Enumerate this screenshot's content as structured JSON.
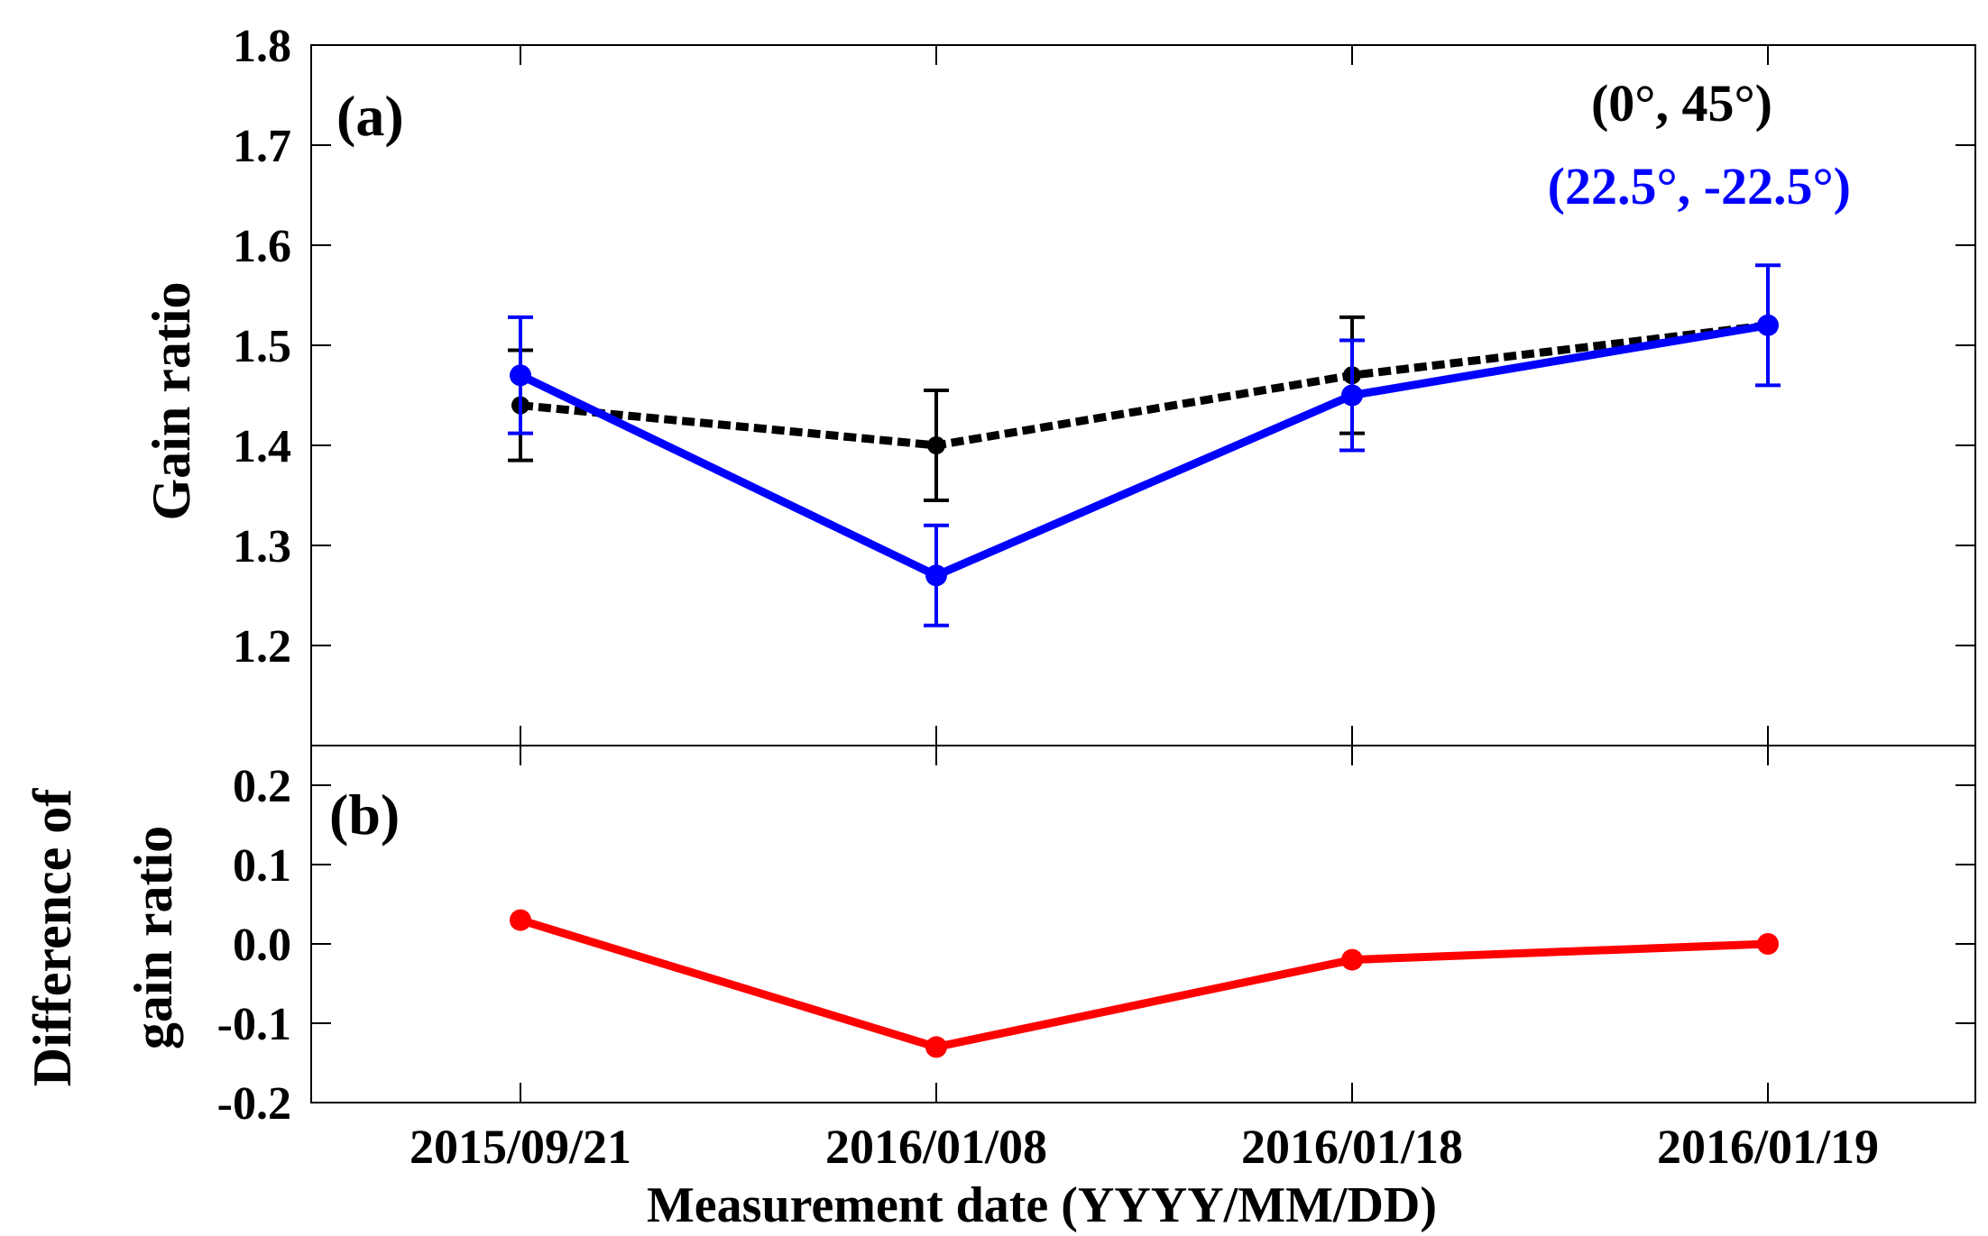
{
  "chart_data": [
    {
      "panel": "a",
      "type": "line",
      "panel_label": "(a)",
      "ylabel": "Gain ratio",
      "ylim": [
        1.1,
        1.8
      ],
      "yticks": [
        "1.2",
        "1.3",
        "1.4",
        "1.5",
        "1.6",
        "1.7",
        "1.8"
      ],
      "categories": [
        "2015/09/21",
        "2016/01/08",
        "2016/01/18",
        "2016/01/19"
      ],
      "series": [
        {
          "name": "(0°, 45°)",
          "color": "#000000",
          "style": "dotted",
          "values": [
            1.44,
            1.4,
            1.47,
            1.52
          ],
          "errors": [
            0.055,
            0.055,
            0.058,
            null
          ]
        },
        {
          "name": "(22.5°, -22.5°)",
          "color": "#0000ff",
          "style": "solid",
          "values": [
            1.47,
            1.27,
            1.45,
            1.52
          ],
          "errors": [
            0.058,
            0.05,
            0.055,
            0.06
          ]
        }
      ],
      "legend": "top-right"
    },
    {
      "panel": "b",
      "type": "line",
      "panel_label": "(b)",
      "ylabel": [
        "Difference of",
        "gain ratio"
      ],
      "ylim": [
        -0.2,
        0.25
      ],
      "yticks": [
        "-0.2",
        "-0.1",
        "0.0",
        "0.1",
        "0.2"
      ],
      "categories": [
        "2015/09/21",
        "2016/01/08",
        "2016/01/18",
        "2016/01/19"
      ],
      "series": [
        {
          "name": "Difference",
          "color": "#ff0000",
          "style": "solid",
          "values": [
            0.03,
            -0.13,
            -0.02,
            0.0
          ]
        }
      ]
    }
  ],
  "xlabel": "Measurement date (YYYY/MM/DD)",
  "xtick_labels": [
    "2015/09/21",
    "2016/01/08",
    "2016/01/18",
    "2016/01/19"
  ]
}
